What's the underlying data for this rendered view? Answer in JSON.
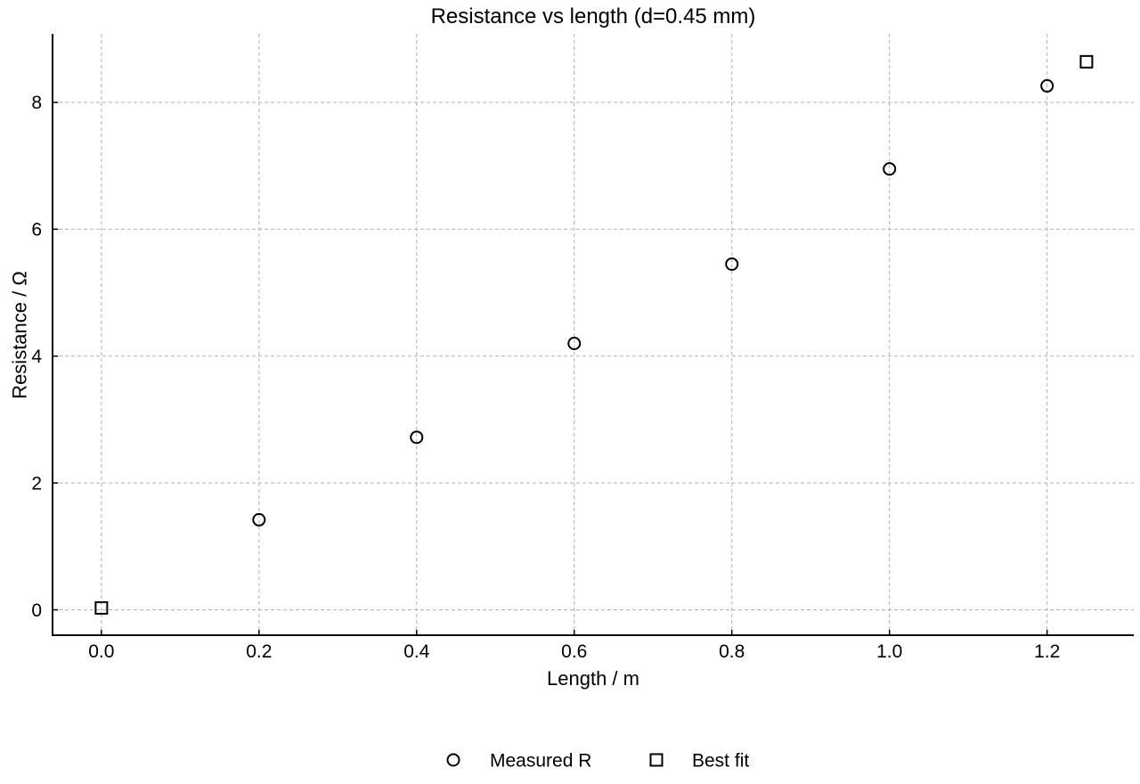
{
  "chart_data": {
    "type": "scatter",
    "title": "Resistance vs length (d=0.45 mm)",
    "xlabel": "Length / m",
    "ylabel": "Resistance / Ω",
    "xlim": [
      -0.062,
      1.31
    ],
    "ylim": [
      -0.4,
      9.08
    ],
    "xticks": [
      0.0,
      0.2,
      0.4,
      0.6,
      0.8,
      1.0,
      1.2
    ],
    "xtick_labels": [
      "0.0",
      "0.2",
      "0.4",
      "0.6",
      "0.8",
      "1.0",
      "1.2"
    ],
    "yticks": [
      0,
      2,
      4,
      6,
      8
    ],
    "ytick_labels": [
      "0",
      "2",
      "4",
      "6",
      "8"
    ],
    "grid": true,
    "legend_position": "bottom-center",
    "series": [
      {
        "name": "Measured R",
        "marker": "circle",
        "x": [
          0.2,
          0.4,
          0.6,
          0.8,
          1.0,
          1.2
        ],
        "y": [
          1.42,
          2.72,
          4.2,
          5.45,
          6.95,
          8.26
        ]
      },
      {
        "name": "Best fit",
        "marker": "square",
        "x": [
          0.0,
          1.25
        ],
        "y": [
          0.03,
          8.64
        ]
      }
    ]
  }
}
